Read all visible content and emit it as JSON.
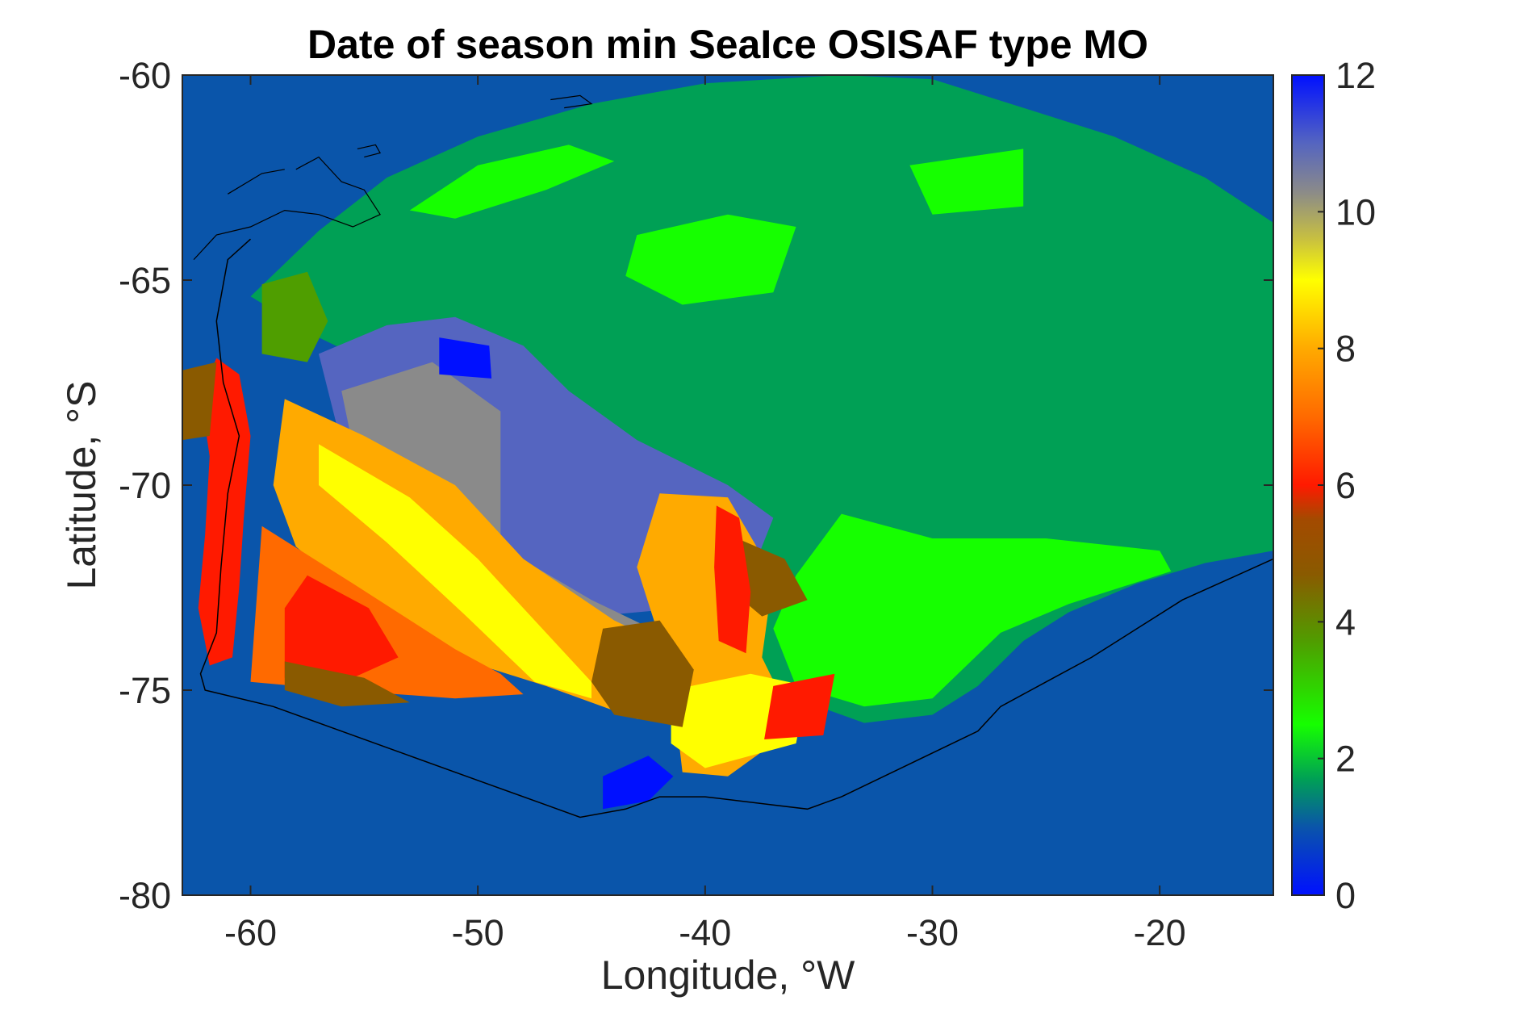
{
  "chart_data": {
    "type": "heatmap",
    "title": "Date of season min SeaIce OSISAF type MO",
    "xlabel": "Longitude, °W",
    "ylabel": "Latitude, °S",
    "xlim": [
      -63,
      -15
    ],
    "ylim": [
      -80,
      -60
    ],
    "x_ticks": [
      -60,
      -50,
      -40,
      -30,
      -20
    ],
    "y_ticks": [
      -60,
      -65,
      -70,
      -75,
      -80
    ],
    "colorbar": {
      "range": [
        0,
        12
      ],
      "ticks": [
        0,
        2,
        4,
        6,
        8,
        10,
        12
      ],
      "stops": [
        {
          "v": 0,
          "color": "#0010ff"
        },
        {
          "v": 1,
          "color": "#0a55aa"
        },
        {
          "v": 1.7,
          "color": "#00a055"
        },
        {
          "v": 2.5,
          "color": "#16ff00"
        },
        {
          "v": 3.7,
          "color": "#4f9e00"
        },
        {
          "v": 4.7,
          "color": "#8a5a00"
        },
        {
          "v": 5.5,
          "color": "#a34a00"
        },
        {
          "v": 6,
          "color": "#ff1a00"
        },
        {
          "v": 7,
          "color": "#ff6a00"
        },
        {
          "v": 8,
          "color": "#ffaa00"
        },
        {
          "v": 9,
          "color": "#ffff00"
        },
        {
          "v": 9.6,
          "color": "#c8c040"
        },
        {
          "v": 10.3,
          "color": "#8a8a8a"
        },
        {
          "v": 11,
          "color": "#5565c0"
        },
        {
          "v": 12,
          "color": "#0010ff"
        }
      ]
    },
    "background_value": 1,
    "regions": [
      {
        "name": "northern-pack-ice",
        "value": 2,
        "polygon": [
          [
            -57,
            -63.8
          ],
          [
            -54,
            -62.5
          ],
          [
            -50,
            -61.5
          ],
          [
            -45,
            -60.7
          ],
          [
            -40,
            -60.2
          ],
          [
            -34,
            -60
          ],
          [
            -30,
            -60.1
          ],
          [
            -26,
            -60.8
          ],
          [
            -22,
            -61.5
          ],
          [
            -18,
            -62.5
          ],
          [
            -15,
            -63.6
          ],
          [
            -15,
            -71.6
          ],
          [
            -18,
            -71.9
          ],
          [
            -21,
            -72.4
          ],
          [
            -24,
            -73.1
          ],
          [
            -26,
            -73.8
          ],
          [
            -28,
            -74.9
          ],
          [
            -30,
            -75.6
          ],
          [
            -33,
            -75.8
          ],
          [
            -36,
            -75.2
          ],
          [
            -40,
            -74.2
          ],
          [
            -43,
            -72.2
          ],
          [
            -45,
            -70.8
          ],
          [
            -48,
            -69.5
          ],
          [
            -51,
            -68.4
          ],
          [
            -54,
            -67.2
          ],
          [
            -57,
            -66.4
          ],
          [
            -60,
            -65.4
          ]
        ]
      },
      {
        "name": "bright-green-patch",
        "value": 2.7,
        "polygon": [
          [
            -34,
            -70.7
          ],
          [
            -30,
            -71.3
          ],
          [
            -25,
            -71.3
          ],
          [
            -20,
            -71.6
          ],
          [
            -19.5,
            -72.1
          ],
          [
            -24,
            -72.9
          ],
          [
            -27,
            -73.6
          ],
          [
            -30,
            -75.2
          ],
          [
            -33,
            -75.4
          ],
          [
            -36,
            -74.9
          ],
          [
            -37,
            -73.5
          ],
          [
            -36,
            -72.2
          ]
        ]
      },
      {
        "name": "bright-green-north",
        "value": 2.7,
        "polygon": [
          [
            -53,
            -63.3
          ],
          [
            -50,
            -62.2
          ],
          [
            -46,
            -61.7
          ],
          [
            -44,
            -62.1
          ],
          [
            -47,
            -62.8
          ],
          [
            -51,
            -63.5
          ]
        ]
      },
      {
        "name": "bright-green-mid",
        "value": 2.7,
        "polygon": [
          [
            -43,
            -63.9
          ],
          [
            -39,
            -63.4
          ],
          [
            -36,
            -63.7
          ],
          [
            -37,
            -65.3
          ],
          [
            -41,
            -65.6
          ],
          [
            -43.5,
            -64.9
          ]
        ]
      },
      {
        "name": "bright-green-east",
        "value": 2.7,
        "polygon": [
          [
            -31,
            -62.2
          ],
          [
            -26,
            -61.8
          ],
          [
            -26,
            -63.2
          ],
          [
            -30,
            -63.4
          ]
        ]
      },
      {
        "name": "grey-blue-zone",
        "value": 11,
        "polygon": [
          [
            -57,
            -66.8
          ],
          [
            -54,
            -66.1
          ],
          [
            -51,
            -65.9
          ],
          [
            -48,
            -66.6
          ],
          [
            -46,
            -67.7
          ],
          [
            -43,
            -68.9
          ],
          [
            -39,
            -70.0
          ],
          [
            -37,
            -70.8
          ],
          [
            -38,
            -72.2
          ],
          [
            -41,
            -73.0
          ],
          [
            -45,
            -73.2
          ],
          [
            -48,
            -72.8
          ],
          [
            -51,
            -72.0
          ],
          [
            -54,
            -70.4
          ],
          [
            -56,
            -69.0
          ]
        ]
      },
      {
        "name": "olive-grey-zone",
        "value": 10,
        "polygon": [
          [
            -56,
            -67.7
          ],
          [
            -52,
            -67.0
          ],
          [
            -49,
            -68.2
          ],
          [
            -49,
            -71.5
          ],
          [
            -45,
            -72.8
          ],
          [
            -42,
            -73.6
          ],
          [
            -40,
            -73.9
          ],
          [
            -41,
            -74.6
          ],
          [
            -45,
            -74.2
          ],
          [
            -49,
            -73.8
          ],
          [
            -52,
            -72.5
          ],
          [
            -55,
            -70.4
          ]
        ]
      },
      {
        "name": "orange-band-west",
        "value": 8,
        "polygon": [
          [
            -58.5,
            -67.9
          ],
          [
            -55,
            -68.8
          ],
          [
            -51,
            -70.0
          ],
          [
            -48,
            -71.8
          ],
          [
            -44,
            -73.3
          ],
          [
            -41,
            -74.1
          ],
          [
            -40,
            -75.8
          ],
          [
            -43,
            -75.7
          ],
          [
            -47,
            -74.9
          ],
          [
            -51,
            -74.2
          ],
          [
            -55,
            -72.9
          ],
          [
            -58,
            -71.5
          ],
          [
            -59,
            -70.0
          ]
        ]
      },
      {
        "name": "orange-band-east",
        "value": 8,
        "polygon": [
          [
            -42,
            -70.2
          ],
          [
            -39,
            -70.3
          ],
          [
            -37,
            -72.2
          ],
          [
            -37.5,
            -74.2
          ],
          [
            -36,
            -75.9
          ],
          [
            -39,
            -77.1
          ],
          [
            -41,
            -77.0
          ],
          [
            -41.5,
            -74.6
          ],
          [
            -43,
            -72.0
          ]
        ]
      },
      {
        "name": "yellow-strip-west",
        "value": 9,
        "polygon": [
          [
            -57,
            -69.0
          ],
          [
            -53,
            -70.3
          ],
          [
            -50,
            -71.8
          ],
          [
            -47,
            -73.6
          ],
          [
            -45,
            -74.8
          ],
          [
            -45,
            -75.2
          ],
          [
            -47.5,
            -74.8
          ],
          [
            -50.5,
            -73.2
          ],
          [
            -54,
            -71.4
          ],
          [
            -57,
            -70.0
          ]
        ]
      },
      {
        "name": "yellow-strip-east",
        "value": 9,
        "polygon": [
          [
            -41.5,
            -75.0
          ],
          [
            -38,
            -74.6
          ],
          [
            -35.5,
            -74.9
          ],
          [
            -36,
            -76.3
          ],
          [
            -40,
            -76.9
          ],
          [
            -41.5,
            -76.3
          ]
        ]
      },
      {
        "name": "red-orange-west",
        "value": 7,
        "polygon": [
          [
            -59.5,
            -71.0
          ],
          [
            -55.5,
            -72.4
          ],
          [
            -51,
            -74.0
          ],
          [
            -49,
            -74.6
          ],
          [
            -48,
            -75.1
          ],
          [
            -51,
            -75.2
          ],
          [
            -56,
            -75.0
          ],
          [
            -60,
            -74.8
          ]
        ]
      },
      {
        "name": "red-west-block",
        "value": 6,
        "polygon": [
          [
            -57.5,
            -72.2
          ],
          [
            -54.8,
            -73.0
          ],
          [
            -53.5,
            -74.2
          ],
          [
            -55.5,
            -74.7
          ],
          [
            -58.5,
            -74.7
          ],
          [
            -58.5,
            -73.0
          ]
        ]
      },
      {
        "name": "red-coast-strip",
        "value": 6,
        "polygon": [
          [
            -61.5,
            -66.9
          ],
          [
            -60.5,
            -67.3
          ],
          [
            -60,
            -68.8
          ],
          [
            -60.3,
            -70.8
          ],
          [
            -60.5,
            -72.5
          ],
          [
            -60.8,
            -74.2
          ],
          [
            -61.8,
            -74.4
          ],
          [
            -62.3,
            -73.0
          ],
          [
            -62.0,
            -71.2
          ],
          [
            -61.8,
            -69.3
          ],
          [
            -62.2,
            -67.8
          ]
        ]
      },
      {
        "name": "brown-west-edge",
        "value": 5,
        "polygon": [
          [
            -63,
            -67.2
          ],
          [
            -61.5,
            -67.0
          ],
          [
            -61.8,
            -68.8
          ],
          [
            -63,
            -68.9
          ]
        ]
      },
      {
        "name": "brown-southwest",
        "value": 5,
        "polygon": [
          [
            -58.5,
            -74.3
          ],
          [
            -55,
            -74.7
          ],
          [
            -53,
            -75.3
          ],
          [
            -56,
            -75.4
          ],
          [
            -58.5,
            -75.0
          ]
        ]
      },
      {
        "name": "brown-south-central",
        "value": 5,
        "polygon": [
          [
            -44.5,
            -73.5
          ],
          [
            -42,
            -73.3
          ],
          [
            -40.5,
            -74.5
          ],
          [
            -41,
            -75.9
          ],
          [
            -44,
            -75.6
          ],
          [
            -45,
            -74.8
          ]
        ]
      },
      {
        "name": "brown-east",
        "value": 5,
        "polygon": [
          [
            -39,
            -71.2
          ],
          [
            -36.5,
            -71.8
          ],
          [
            -35.5,
            -72.8
          ],
          [
            -37.5,
            -73.2
          ],
          [
            -39,
            -72.5
          ]
        ]
      },
      {
        "name": "red-east-patches",
        "value": 6,
        "polygon": [
          [
            -39.5,
            -70.5
          ],
          [
            -38.5,
            -70.8
          ],
          [
            -38,
            -72.6
          ],
          [
            -38.2,
            -74.1
          ],
          [
            -39.4,
            -73.8
          ],
          [
            -39.6,
            -72.0
          ]
        ]
      },
      {
        "name": "red-south-east",
        "value": 6,
        "polygon": [
          [
            -37,
            -74.9
          ],
          [
            -34.3,
            -74.6
          ],
          [
            -34.8,
            -76.1
          ],
          [
            -37.4,
            -76.2
          ]
        ]
      },
      {
        "name": "olive-west-patch",
        "value": 4,
        "polygon": [
          [
            -59.5,
            -65.1
          ],
          [
            -57.5,
            -64.8
          ],
          [
            -56.6,
            -66.0
          ],
          [
            -57.5,
            -67.0
          ],
          [
            -59.5,
            -66.8
          ]
        ]
      },
      {
        "name": "deep-blue-patch-north",
        "value": 0.2,
        "polygon": [
          [
            -51.7,
            -66.4
          ],
          [
            -49.5,
            -66.6
          ],
          [
            -49.4,
            -67.4
          ],
          [
            -51.7,
            -67.3
          ]
        ]
      },
      {
        "name": "deep-blue-patch-south",
        "value": 0.2,
        "polygon": [
          [
            -44.5,
            -77.1
          ],
          [
            -42.5,
            -76.6
          ],
          [
            -41.4,
            -77.1
          ],
          [
            -42.5,
            -77.7
          ],
          [
            -44.5,
            -77.9
          ]
        ]
      }
    ],
    "coastline": [
      [
        -60,
        -64
      ],
      [
        -61,
        -64.5
      ],
      [
        -61.5,
        -66
      ],
      [
        -61.2,
        -67.5
      ],
      [
        -60.5,
        -68.8
      ],
      [
        -61,
        -70.2
      ],
      [
        -61.3,
        -72
      ],
      [
        -61.5,
        -73.6
      ],
      [
        -62.2,
        -74.6
      ],
      [
        -62,
        -75
      ],
      [
        -59,
        -75.4
      ],
      [
        -56,
        -76
      ],
      [
        -53,
        -76.6
      ],
      [
        -50,
        -77.2
      ],
      [
        -47,
        -77.8
      ],
      [
        -45.5,
        -78.1
      ],
      [
        -43.5,
        -77.9
      ],
      [
        -42,
        -77.6
      ],
      [
        -40,
        -77.6
      ],
      [
        -37,
        -77.8
      ],
      [
        -35.5,
        -77.9
      ],
      [
        -34,
        -77.6
      ],
      [
        -31,
        -76.8
      ],
      [
        -28,
        -76
      ],
      [
        -27,
        -75.4
      ],
      [
        -25,
        -74.8
      ],
      [
        -23,
        -74.2
      ],
      [
        -21,
        -73.5
      ],
      [
        -19,
        -72.8
      ],
      [
        -17,
        -72.3
      ],
      [
        -15,
        -71.8
      ]
    ],
    "islands": [
      [
        [
          -58,
          -62.3
        ],
        [
          -57,
          -62
        ],
        [
          -56,
          -62.6
        ],
        [
          -55,
          -62.8
        ],
        [
          -54.3,
          -63.4
        ],
        [
          -55.5,
          -63.7
        ],
        [
          -57,
          -63.4
        ],
        [
          -58.5,
          -63.3
        ],
        [
          -60,
          -63.7
        ],
        [
          -61.5,
          -63.9
        ],
        [
          -62.5,
          -64.5
        ]
      ],
      [
        [
          -55.3,
          -61.8
        ],
        [
          -54.5,
          -61.7
        ],
        [
          -54.3,
          -61.9
        ],
        [
          -55,
          -62
        ]
      ],
      [
        [
          -46.8,
          -60.6
        ],
        [
          -45.5,
          -60.5
        ],
        [
          -45,
          -60.7
        ],
        [
          -46.2,
          -60.8
        ]
      ],
      [
        [
          -61,
          -62.9
        ],
        [
          -59.5,
          -62.4
        ],
        [
          -58.5,
          -62.3
        ]
      ]
    ]
  }
}
